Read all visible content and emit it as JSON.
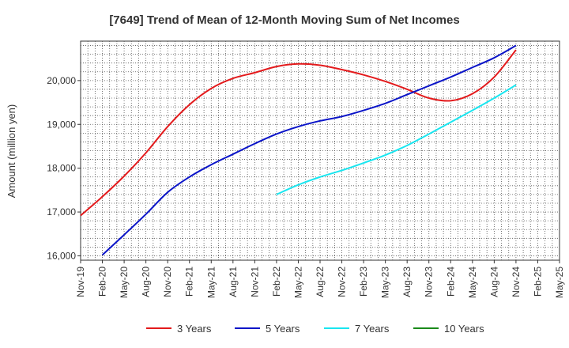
{
  "chart_data": {
    "type": "line",
    "title": "[7649]  Trend of Mean of 12-Month Moving Sum of Net Incomes",
    "xlabel": "",
    "ylabel": "Amount (million yen)",
    "ylim": [
      15900,
      20900
    ],
    "yticks": [
      16000,
      17000,
      18000,
      19000,
      20000
    ],
    "ytick_labels": [
      "16,000",
      "17,000",
      "18,000",
      "19,000",
      "20,000"
    ],
    "x_start": "2019-11",
    "x_end": "2025-05",
    "xtick_labels": [
      "Nov-19",
      "Feb-20",
      "May-20",
      "Aug-20",
      "Nov-20",
      "Feb-21",
      "May-21",
      "Aug-21",
      "Nov-21",
      "Feb-22",
      "May-22",
      "Aug-22",
      "Nov-22",
      "Feb-23",
      "May-23",
      "Aug-23",
      "Nov-23",
      "Feb-24",
      "May-24",
      "Aug-24",
      "Nov-24",
      "Feb-25",
      "May-25"
    ],
    "grid": true,
    "legend_position": "bottom",
    "series": [
      {
        "name": "3 Years",
        "color": "#e31a1c",
        "points": [
          [
            "2019-11",
            16920
          ],
          [
            "2020-02",
            17350
          ],
          [
            "2020-05",
            17820
          ],
          [
            "2020-08",
            18350
          ],
          [
            "2020-11",
            18950
          ],
          [
            "2021-02",
            19450
          ],
          [
            "2021-05",
            19820
          ],
          [
            "2021-08",
            20050
          ],
          [
            "2021-11",
            20180
          ],
          [
            "2022-02",
            20320
          ],
          [
            "2022-05",
            20380
          ],
          [
            "2022-08",
            20350
          ],
          [
            "2022-11",
            20250
          ],
          [
            "2023-02",
            20130
          ],
          [
            "2023-05",
            19980
          ],
          [
            "2023-08",
            19800
          ],
          [
            "2023-11",
            19600
          ],
          [
            "2024-02",
            19540
          ],
          [
            "2024-05",
            19700
          ],
          [
            "2024-08",
            20080
          ],
          [
            "2024-11",
            20700
          ]
        ]
      },
      {
        "name": "5 Years",
        "color": "#0a14c8",
        "points": [
          [
            "2020-02",
            16020
          ],
          [
            "2020-05",
            16480
          ],
          [
            "2020-08",
            16950
          ],
          [
            "2020-11",
            17450
          ],
          [
            "2021-02",
            17800
          ],
          [
            "2021-05",
            18080
          ],
          [
            "2021-08",
            18320
          ],
          [
            "2021-11",
            18560
          ],
          [
            "2022-02",
            18780
          ],
          [
            "2022-05",
            18950
          ],
          [
            "2022-08",
            19080
          ],
          [
            "2022-11",
            19180
          ],
          [
            "2023-02",
            19320
          ],
          [
            "2023-05",
            19480
          ],
          [
            "2023-08",
            19680
          ],
          [
            "2023-11",
            19880
          ],
          [
            "2024-02",
            20080
          ],
          [
            "2024-05",
            20300
          ],
          [
            "2024-08",
            20520
          ],
          [
            "2024-11",
            20800
          ]
        ]
      },
      {
        "name": "7 Years",
        "color": "#19e6f0",
        "points": [
          [
            "2022-02",
            17400
          ],
          [
            "2022-05",
            17620
          ],
          [
            "2022-08",
            17800
          ],
          [
            "2022-11",
            17950
          ],
          [
            "2023-02",
            18120
          ],
          [
            "2023-05",
            18300
          ],
          [
            "2023-08",
            18520
          ],
          [
            "2023-11",
            18780
          ],
          [
            "2024-02",
            19050
          ],
          [
            "2024-05",
            19320
          ],
          [
            "2024-08",
            19600
          ],
          [
            "2024-11",
            19900
          ]
        ]
      },
      {
        "name": "10 Years",
        "color": "#1a8a1a",
        "points": []
      }
    ]
  }
}
